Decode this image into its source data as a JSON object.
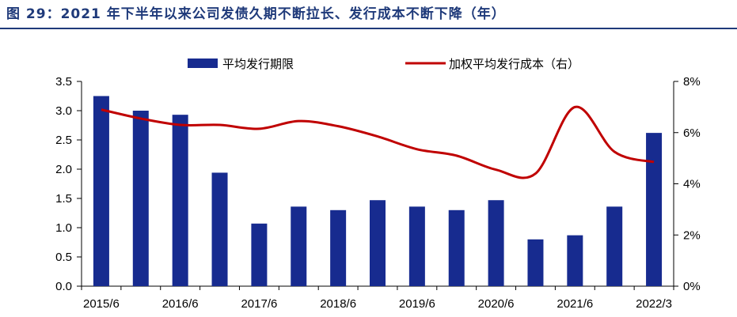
{
  "figure_title": "图 29：2021 年下半年以来公司发债久期不断拉长、发行成本不断下降（年）",
  "chart_data": {
    "type": "bar+line",
    "x_tick_labels": [
      "2015/6",
      "2016/6",
      "2017/6",
      "2018/6",
      "2019/6",
      "2020/6",
      "2021/6",
      "2022/3"
    ],
    "y_left": {
      "ticks": [
        "0.0",
        "0.5",
        "1.0",
        "1.5",
        "2.0",
        "2.5",
        "3.0",
        "3.5"
      ],
      "ylim": [
        0,
        3.5
      ]
    },
    "y_right": {
      "ticks": [
        "0%",
        "2%",
        "4%",
        "6%",
        "8%"
      ],
      "ylim": [
        0,
        8
      ]
    },
    "legend": {
      "bar_label": "平均发行期限",
      "line_label": "加权平均发行成本（右）",
      "position": "top-center"
    },
    "colors": {
      "bar": "#172b8f",
      "line": "#c00000",
      "title": "#1f3a7a"
    },
    "series": [
      {
        "name": "平均发行期限",
        "type": "bar",
        "axis": "left",
        "values": [
          3.25,
          3.0,
          2.93,
          1.94,
          1.07,
          1.36,
          1.3,
          1.47,
          1.36,
          1.3,
          1.47,
          0.8,
          0.87,
          1.36,
          2.62
        ]
      },
      {
        "name": "加权平均发行成本（右）",
        "type": "line",
        "axis": "right",
        "values": [
          6.9,
          6.55,
          6.3,
          6.3,
          6.15,
          6.45,
          6.25,
          5.85,
          5.35,
          5.1,
          4.55,
          4.4,
          7.0,
          5.25,
          4.85
        ]
      }
    ]
  }
}
